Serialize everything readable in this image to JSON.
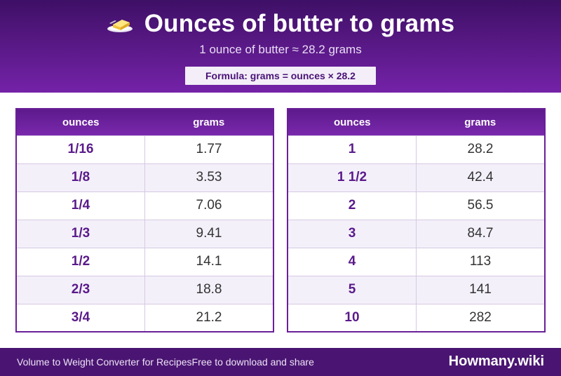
{
  "header": {
    "title": "Ounces of butter to grams",
    "subtitle": "1 ounce of butter ≈ 28.2 grams",
    "formula": "Formula: grams = ounces × 28.2",
    "icon": "butter-icon"
  },
  "tables": {
    "left": {
      "col_ounces": "ounces",
      "col_grams": "grams",
      "rows": [
        {
          "ounces": "1/16",
          "grams": "1.77"
        },
        {
          "ounces": "1/8",
          "grams": "3.53"
        },
        {
          "ounces": "1/4",
          "grams": "7.06"
        },
        {
          "ounces": "1/3",
          "grams": "9.41"
        },
        {
          "ounces": "1/2",
          "grams": "14.1"
        },
        {
          "ounces": "2/3",
          "grams": "18.8"
        },
        {
          "ounces": "3/4",
          "grams": "21.2"
        }
      ]
    },
    "right": {
      "col_ounces": "ounces",
      "col_grams": "grams",
      "rows": [
        {
          "ounces": "1",
          "grams": "28.2"
        },
        {
          "ounces": "1 1/2",
          "grams": "42.4"
        },
        {
          "ounces": "2",
          "grams": "56.5"
        },
        {
          "ounces": "3",
          "grams": "84.7"
        },
        {
          "ounces": "4",
          "grams": "113"
        },
        {
          "ounces": "5",
          "grams": "141"
        },
        {
          "ounces": "10",
          "grams": "282"
        }
      ]
    }
  },
  "footer": {
    "left_text": "Volume to Weight Converter for RecipesFree to download and share",
    "brand": "Howmany.wiki"
  },
  "colors": {
    "primary": "#5c1a8a",
    "header_dark": "#3e1066",
    "footer_bg": "#4a1572",
    "row_alt": "#f3f0fa"
  }
}
